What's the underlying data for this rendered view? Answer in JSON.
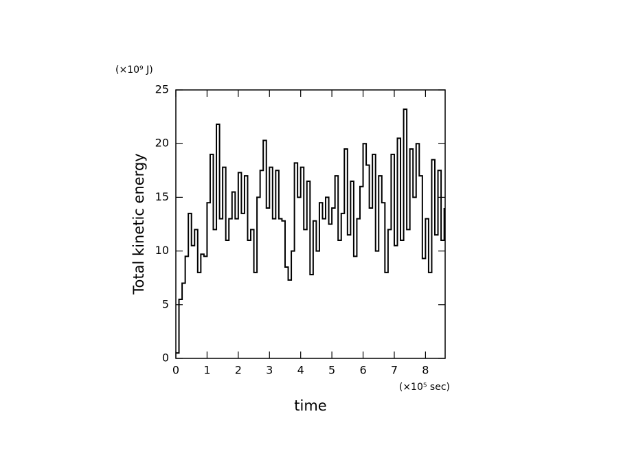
{
  "chart_data": {
    "type": "line",
    "drawstyle": "steps",
    "xlabel": "time",
    "ylabel": "Total kinetic energy",
    "x_unit": "(×10⁵ sec)",
    "y_unit": "(×10⁹ J)",
    "x": [
      0,
      0.1,
      0.2,
      0.3,
      0.4,
      0.5,
      0.6,
      0.7,
      0.8,
      0.9,
      1.0,
      1.1,
      1.2,
      1.3,
      1.4,
      1.5,
      1.6,
      1.7,
      1.8,
      1.9,
      2.0,
      2.1,
      2.2,
      2.3,
      2.4,
      2.5,
      2.6,
      2.7,
      2.8,
      2.9,
      3.0,
      3.1,
      3.2,
      3.3,
      3.4,
      3.5,
      3.6,
      3.7,
      3.8,
      3.9,
      4.0,
      4.1,
      4.2,
      4.3,
      4.4,
      4.5,
      4.6,
      4.7,
      4.8,
      4.9,
      5.0,
      5.1,
      5.2,
      5.3,
      5.4,
      5.5,
      5.6,
      5.7,
      5.8,
      5.9,
      6.0,
      6.1,
      6.2,
      6.3,
      6.4,
      6.5,
      6.6,
      6.7,
      6.8,
      6.9,
      7.0,
      7.1,
      7.2,
      7.3,
      7.4,
      7.5,
      7.6,
      7.7,
      7.8,
      7.9,
      8.0,
      8.1,
      8.2,
      8.3,
      8.4,
      8.5,
      8.6
    ],
    "series": [
      {
        "name": "Total kinetic energy",
        "color": "#000000",
        "values": [
          0.5,
          5.5,
          7,
          9.5,
          13.5,
          10.5,
          12,
          8,
          9.7,
          9.5,
          14.5,
          19,
          12,
          21.8,
          13,
          17.8,
          11,
          13,
          15.5,
          13,
          17.3,
          13.5,
          17,
          11,
          12,
          8,
          15,
          17.5,
          20.3,
          14,
          17.8,
          13,
          17.5,
          13,
          12.8,
          8.5,
          7.3,
          10,
          18.2,
          15,
          17.8,
          12,
          16.5,
          7.8,
          12.8,
          10,
          14.5,
          13,
          15,
          12.5,
          14,
          17,
          11,
          13.5,
          19.5,
          11.5,
          16.5,
          9.5,
          13,
          16,
          20,
          18,
          14,
          19,
          10,
          17,
          14.5,
          8,
          12,
          19,
          10.5,
          20.5,
          11,
          23.2,
          12,
          19.5,
          15,
          20,
          17,
          9.3,
          13,
          8,
          18.5,
          11.5,
          17.5,
          11,
          14
        ]
      }
    ],
    "xlim": [
      0,
      8.63
    ],
    "ylim": [
      0,
      25
    ],
    "xticks": [
      0,
      1,
      2,
      3,
      4,
      5,
      6,
      7,
      8
    ],
    "yticks": [
      0,
      5,
      10,
      15,
      20,
      25
    ]
  }
}
